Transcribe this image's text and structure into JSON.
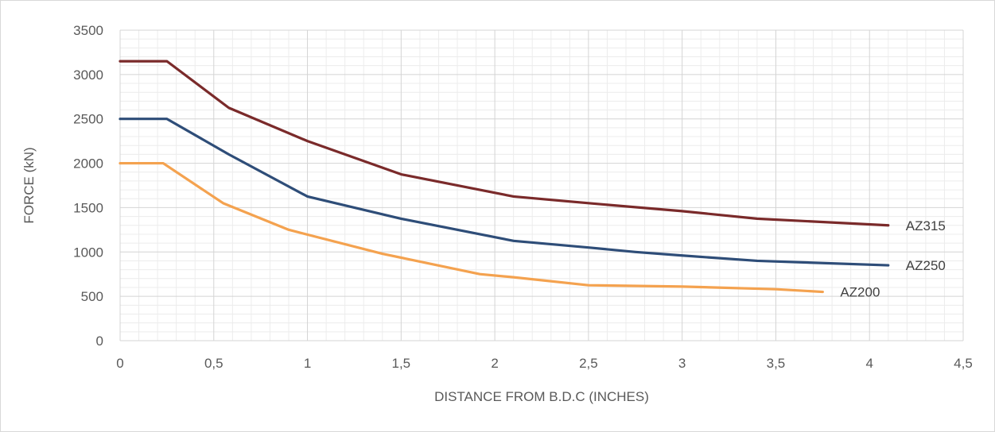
{
  "chart_data": {
    "type": "line",
    "title": "",
    "xlabel": "DISTANCE FROM B.D.C (INCHES)",
    "ylabel": "FORCE (kN)",
    "xlim": [
      0,
      4.5
    ],
    "ylim": [
      0,
      3500
    ],
    "x_ticks": [
      0,
      0.5,
      1,
      1.5,
      2,
      2.5,
      3,
      3.5,
      4,
      4.5
    ],
    "x_tick_labels": [
      "0",
      "0,5",
      "1",
      "1,5",
      "2",
      "2,5",
      "3",
      "3,5",
      "4",
      "4,5"
    ],
    "y_ticks": [
      0,
      500,
      1000,
      1500,
      2000,
      2500,
      3000,
      3500
    ],
    "y_tick_labels": [
      "0",
      "500",
      "1000",
      "1500",
      "2000",
      "2500",
      "3000",
      "3500"
    ],
    "grid": {
      "major_x_step": 0.5,
      "minor_x_step": 0.1,
      "major_y_step": 500,
      "minor_y_step": 100
    },
    "legend": "none",
    "series": [
      {
        "name": "AZ315",
        "color": "#7a2a2a",
        "x": [
          0,
          0.25,
          0.58,
          1.0,
          1.5,
          2.1,
          2.5,
          3.0,
          3.4,
          4.1
        ],
        "y": [
          3150,
          3150,
          2625,
          2250,
          1875,
          1625,
          1550,
          1460,
          1375,
          1300
        ]
      },
      {
        "name": "AZ250",
        "color": "#2e4d78",
        "x": [
          0,
          0.25,
          0.58,
          1.0,
          1.5,
          2.1,
          2.5,
          2.75,
          3.0,
          3.4,
          4.1
        ],
        "y": [
          2500,
          2500,
          2100,
          1625,
          1375,
          1125,
          1050,
          1000,
          960,
          900,
          850
        ]
      },
      {
        "name": "AZ200",
        "color": "#f4a24f",
        "x": [
          0,
          0.23,
          0.55,
          0.9,
          1.4,
          1.92,
          2.1,
          2.5,
          3.0,
          3.5,
          3.75
        ],
        "y": [
          2000,
          2000,
          1550,
          1250,
          980,
          750,
          715,
          625,
          610,
          580,
          550
        ]
      }
    ]
  }
}
